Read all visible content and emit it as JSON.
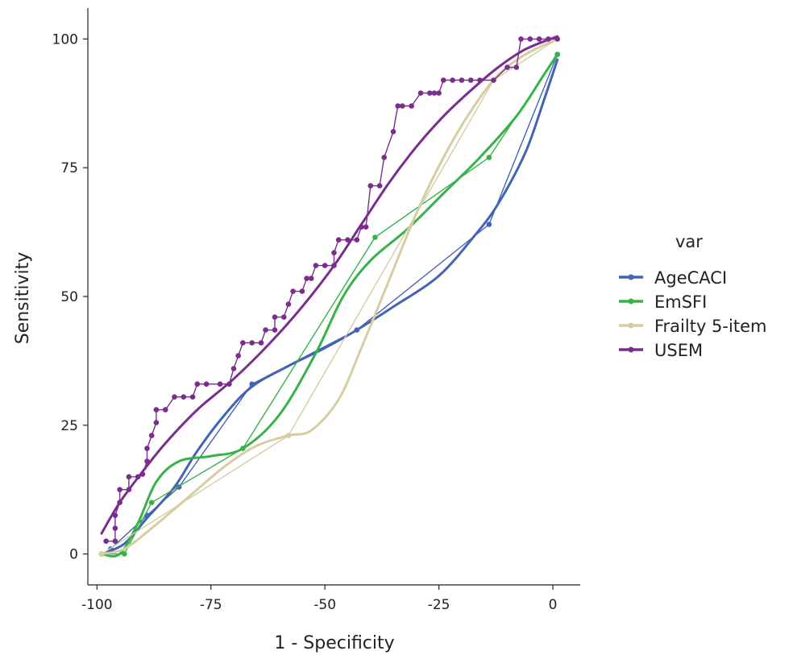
{
  "chart_data": {
    "type": "line",
    "xlabel": "1 - Specificity",
    "ylabel": "Sensitivity",
    "xlim": [
      -102,
      6
    ],
    "ylim": [
      -6,
      106
    ],
    "xticks": [
      -100,
      -75,
      -50,
      -25,
      0
    ],
    "yticks": [
      0,
      25,
      50,
      75,
      100
    ],
    "xtick_labels": [
      "-100",
      "-75",
      "-50",
      "-25",
      "0"
    ],
    "ytick_labels": [
      "0",
      "25",
      "50",
      "75",
      "100"
    ],
    "grid": false,
    "legend": {
      "title": "var",
      "position": "right"
    },
    "series": [
      {
        "name": "AgeCACI",
        "color": "#4363b5",
        "points": [
          [
            -99,
            0
          ],
          [
            -97,
            1
          ],
          [
            -89,
            7.5
          ],
          [
            -82,
            13
          ],
          [
            -66,
            33
          ],
          [
            -43,
            43.5
          ],
          [
            -14,
            64
          ],
          [
            1,
            97
          ]
        ],
        "smooth": [
          [
            -99,
            0
          ],
          [
            -94,
            2
          ],
          [
            -89,
            7
          ],
          [
            -83,
            13
          ],
          [
            -78,
            20
          ],
          [
            -72,
            27
          ],
          [
            -66,
            32.5
          ],
          [
            -58,
            36.5
          ],
          [
            -50,
            40
          ],
          [
            -43,
            43.5
          ],
          [
            -35,
            48
          ],
          [
            -25,
            54
          ],
          [
            -17,
            62
          ],
          [
            -12,
            68
          ],
          [
            -6,
            78
          ],
          [
            -2,
            88
          ],
          [
            1,
            96
          ]
        ]
      },
      {
        "name": "EmSFI",
        "color": "#35b34a",
        "points": [
          [
            -99,
            0
          ],
          [
            -94,
            0
          ],
          [
            -88,
            10
          ],
          [
            -68,
            20.5
          ],
          [
            -39,
            61.5
          ],
          [
            -14,
            77
          ],
          [
            1,
            97
          ]
        ],
        "smooth": [
          [
            -99,
            0
          ],
          [
            -95,
            0
          ],
          [
            -91,
            6
          ],
          [
            -87,
            14
          ],
          [
            -82,
            18
          ],
          [
            -75,
            19
          ],
          [
            -68,
            20.5
          ],
          [
            -60,
            27
          ],
          [
            -52,
            39
          ],
          [
            -46,
            50
          ],
          [
            -40,
            57
          ],
          [
            -32,
            63
          ],
          [
            -24,
            70
          ],
          [
            -16,
            77
          ],
          [
            -8,
            85
          ],
          [
            -2,
            93
          ],
          [
            1,
            97
          ]
        ]
      },
      {
        "name": "Frailty 5-item",
        "color": "#d6cda2",
        "points": [
          [
            -99,
            0
          ],
          [
            -58,
            23
          ],
          [
            -13,
            92
          ],
          [
            1,
            100
          ]
        ],
        "smooth": [
          [
            -99,
            0
          ],
          [
            -94,
            1
          ],
          [
            -88,
            5
          ],
          [
            -80,
            11
          ],
          [
            -72,
            17
          ],
          [
            -65,
            21
          ],
          [
            -58,
            23
          ],
          [
            -53,
            24
          ],
          [
            -47,
            30
          ],
          [
            -42,
            40
          ],
          [
            -36,
            53
          ],
          [
            -30,
            66
          ],
          [
            -24,
            77
          ],
          [
            -18,
            86
          ],
          [
            -12,
            93
          ],
          [
            -6,
            97
          ],
          [
            1,
            100
          ]
        ]
      },
      {
        "name": "USEM",
        "color": "#7b2d8e",
        "points": [
          [
            -98,
            2.5
          ],
          [
            -96,
            2.5
          ],
          [
            -96,
            5
          ],
          [
            -96,
            7.5
          ],
          [
            -95,
            10
          ],
          [
            -95,
            12.5
          ],
          [
            -93,
            12.5
          ],
          [
            -93,
            15
          ],
          [
            -91,
            15
          ],
          [
            -90,
            15.5
          ],
          [
            -89,
            18
          ],
          [
            -89,
            20.5
          ],
          [
            -88,
            23
          ],
          [
            -87,
            25.5
          ],
          [
            -87,
            28
          ],
          [
            -85,
            28
          ],
          [
            -83,
            30.5
          ],
          [
            -81,
            30.5
          ],
          [
            -79,
            30.5
          ],
          [
            -78,
            33
          ],
          [
            -76,
            33
          ],
          [
            -73,
            33
          ],
          [
            -71,
            33
          ],
          [
            -70,
            36
          ],
          [
            -69,
            38.5
          ],
          [
            -68,
            41
          ],
          [
            -66,
            41
          ],
          [
            -64,
            41
          ],
          [
            -63,
            43.5
          ],
          [
            -61,
            43.5
          ],
          [
            -61,
            46
          ],
          [
            -59,
            46
          ],
          [
            -58,
            48.5
          ],
          [
            -57,
            51
          ],
          [
            -55,
            51
          ],
          [
            -54,
            53.5
          ],
          [
            -53,
            53.5
          ],
          [
            -52,
            56
          ],
          [
            -50,
            56
          ],
          [
            -48,
            56
          ],
          [
            -48,
            58.5
          ],
          [
            -47,
            61
          ],
          [
            -45,
            61
          ],
          [
            -43,
            61
          ],
          [
            -42,
            63.5
          ],
          [
            -41,
            63.5
          ],
          [
            -40,
            71.5
          ],
          [
            -38,
            71.5
          ],
          [
            -37,
            77
          ],
          [
            -35,
            82
          ],
          [
            -34,
            87
          ],
          [
            -33,
            87
          ],
          [
            -31,
            87
          ],
          [
            -29,
            89.5
          ],
          [
            -27,
            89.5
          ],
          [
            -26,
            89.5
          ],
          [
            -25,
            89.5
          ],
          [
            -24,
            92
          ],
          [
            -22,
            92
          ],
          [
            -20,
            92
          ],
          [
            -18,
            92
          ],
          [
            -16,
            92
          ],
          [
            -13,
            92
          ],
          [
            -10,
            94.5
          ],
          [
            -8,
            94.5
          ],
          [
            -7,
            100
          ],
          [
            -5,
            100
          ],
          [
            -3,
            100
          ],
          [
            -1,
            100
          ],
          [
            1,
            100
          ]
        ],
        "smooth": [
          [
            -99,
            4
          ],
          [
            -95,
            10
          ],
          [
            -90,
            16
          ],
          [
            -85,
            21.5
          ],
          [
            -78,
            28
          ],
          [
            -70,
            34
          ],
          [
            -62,
            41
          ],
          [
            -55,
            48
          ],
          [
            -48,
            56
          ],
          [
            -42,
            64
          ],
          [
            -36,
            72
          ],
          [
            -30,
            79
          ],
          [
            -24,
            85
          ],
          [
            -18,
            90
          ],
          [
            -12,
            94.5
          ],
          [
            -6,
            98
          ],
          [
            1,
            100.5
          ]
        ]
      }
    ]
  }
}
